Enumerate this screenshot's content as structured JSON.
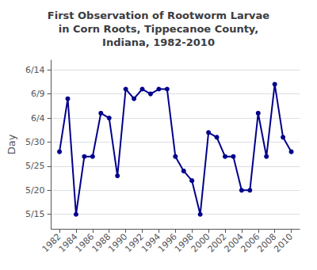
{
  "chart_data": {
    "type": "line",
    "title": "First Observation of Rootworm Larvae\nin Corn Roots, Tippecanoe County,\nIndiana, 1982-2010",
    "y_label": "Day",
    "x": [
      1982,
      1983,
      1984,
      1985,
      1986,
      1987,
      1988,
      1989,
      1990,
      1991,
      1992,
      1993,
      1994,
      1995,
      1996,
      1997,
      1998,
      1999,
      2000,
      2001,
      2002,
      2003,
      2004,
      2005,
      2006,
      2007,
      2008,
      2009,
      2010
    ],
    "values": [
      149,
      160,
      136,
      148,
      148,
      157,
      156,
      144,
      162,
      160,
      162,
      161,
      162,
      162,
      148,
      145,
      143,
      136,
      153,
      152,
      148,
      148,
      141,
      141,
      157,
      148,
      163,
      152,
      149
    ],
    "color": "#00008B",
    "marker": "circle",
    "line_style": "solid",
    "xlim": [
      1981,
      2011
    ],
    "xticks": [
      1982,
      1984,
      1986,
      1988,
      1990,
      1992,
      1994,
      1996,
      1998,
      2000,
      2002,
      2004,
      2006,
      2008,
      2010
    ],
    "ylim": [
      133,
      168
    ],
    "yticks": [
      {
        "value": 136,
        "label": "5/15"
      },
      {
        "value": 141,
        "label": "5/20"
      },
      {
        "value": 146,
        "label": "5/25"
      },
      {
        "value": 151,
        "label": "5/30"
      },
      {
        "value": 156,
        "label": "6/4"
      },
      {
        "value": 161,
        "label": "6/9"
      },
      {
        "value": 166,
        "label": "6/14"
      }
    ],
    "grid": true
  }
}
